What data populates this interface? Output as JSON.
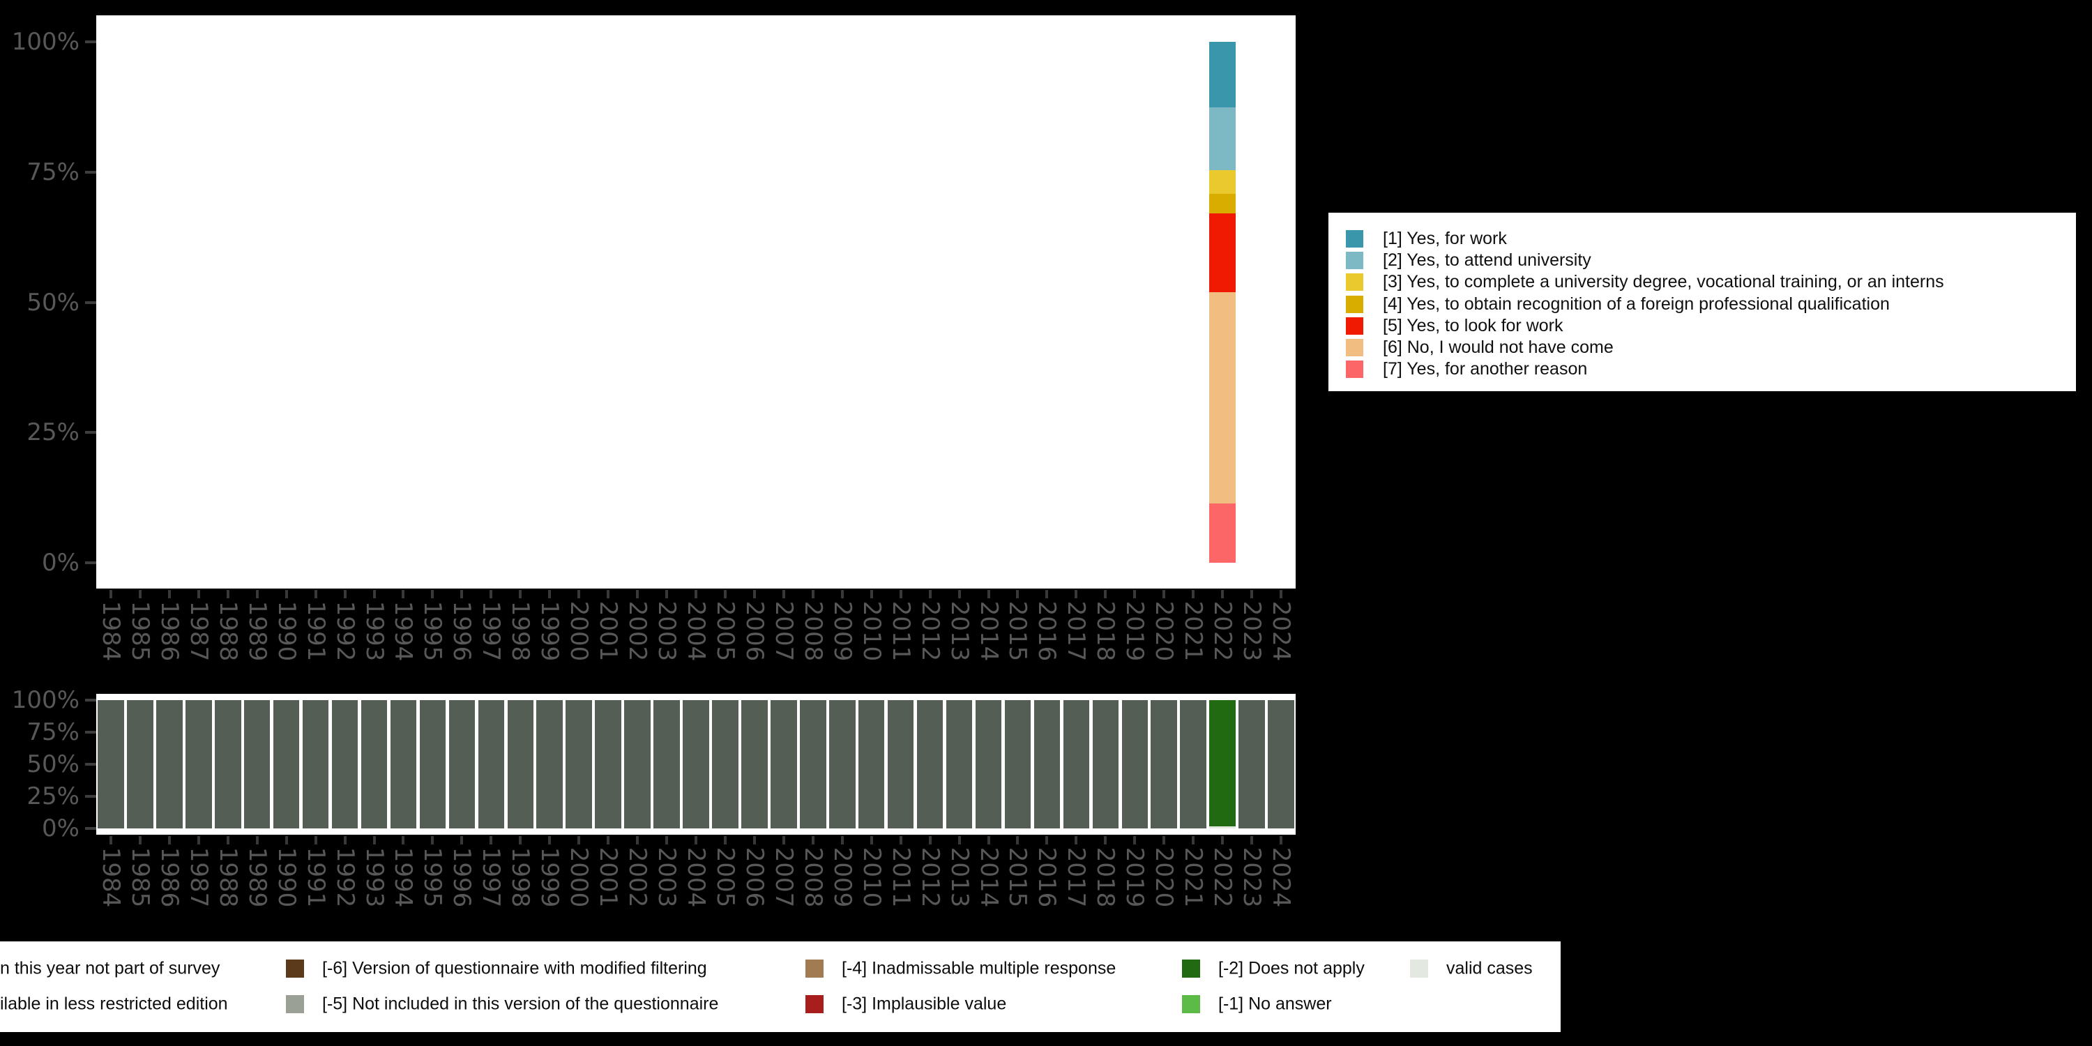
{
  "colors": {
    "background": "#000000",
    "panel": "#ffffff",
    "axis_text": "#585858",
    "axis_tick": "#3e3e3e",
    "legend_background": "#ffffff",
    "legend_text": "#0d0d0d"
  },
  "chart_data": [
    {
      "type": "bar",
      "stacked": true,
      "title": "",
      "xlabel": "",
      "ylabel": "",
      "ylim": [
        0,
        100
      ],
      "ytick_labels": [
        "100%",
        "75%",
        "50%",
        "25%",
        "0%"
      ],
      "grid": false,
      "legend_position": "right",
      "categories": [
        1984,
        1985,
        1986,
        1987,
        1988,
        1989,
        1990,
        1991,
        1992,
        1993,
        1994,
        1995,
        1996,
        1997,
        1998,
        1999,
        2000,
        2001,
        2002,
        2003,
        2004,
        2005,
        2006,
        2007,
        2008,
        2009,
        2010,
        2011,
        2012,
        2013,
        2014,
        2015,
        2016,
        2017,
        2018,
        2019,
        2020,
        2021,
        2022,
        2023,
        2024
      ],
      "series": [
        {
          "name": "[1] Yes, for work",
          "color": "#3a96ab",
          "values": [
            0,
            0,
            0,
            0,
            0,
            0,
            0,
            0,
            0,
            0,
            0,
            0,
            0,
            0,
            0,
            0,
            0,
            0,
            0,
            0,
            0,
            0,
            0,
            0,
            0,
            0,
            0,
            0,
            0,
            0,
            0,
            0,
            0,
            0,
            0,
            0,
            0,
            0,
            12.6,
            0,
            0
          ]
        },
        {
          "name": "[2] Yes, to attend university",
          "color": "#7cb9c5",
          "values": [
            0,
            0,
            0,
            0,
            0,
            0,
            0,
            0,
            0,
            0,
            0,
            0,
            0,
            0,
            0,
            0,
            0,
            0,
            0,
            0,
            0,
            0,
            0,
            0,
            0,
            0,
            0,
            0,
            0,
            0,
            0,
            0,
            0,
            0,
            0,
            0,
            0,
            0,
            12.0,
            0,
            0
          ]
        },
        {
          "name": "[3] Yes, to complete a university degree, vocational training, or an interns",
          "color": "#e9c92d",
          "values": [
            0,
            0,
            0,
            0,
            0,
            0,
            0,
            0,
            0,
            0,
            0,
            0,
            0,
            0,
            0,
            0,
            0,
            0,
            0,
            0,
            0,
            0,
            0,
            0,
            0,
            0,
            0,
            0,
            0,
            0,
            0,
            0,
            0,
            0,
            0,
            0,
            0,
            0,
            4.6,
            0,
            0
          ]
        },
        {
          "name": "[4] Yes, to obtain recognition of a foreign professional qualification",
          "color": "#d9ad00",
          "values": [
            0,
            0,
            0,
            0,
            0,
            0,
            0,
            0,
            0,
            0,
            0,
            0,
            0,
            0,
            0,
            0,
            0,
            0,
            0,
            0,
            0,
            0,
            0,
            0,
            0,
            0,
            0,
            0,
            0,
            0,
            0,
            0,
            0,
            0,
            0,
            0,
            0,
            0,
            3.7,
            0,
            0
          ]
        },
        {
          "name": "[5] Yes, to look for work",
          "color": "#f01a02",
          "values": [
            0,
            0,
            0,
            0,
            0,
            0,
            0,
            0,
            0,
            0,
            0,
            0,
            0,
            0,
            0,
            0,
            0,
            0,
            0,
            0,
            0,
            0,
            0,
            0,
            0,
            0,
            0,
            0,
            0,
            0,
            0,
            0,
            0,
            0,
            0,
            0,
            0,
            0,
            15.2,
            0,
            0
          ]
        },
        {
          "name": "[6] No, I would not have come",
          "color": "#f1bd80",
          "values": [
            0,
            0,
            0,
            0,
            0,
            0,
            0,
            0,
            0,
            0,
            0,
            0,
            0,
            0,
            0,
            0,
            0,
            0,
            0,
            0,
            0,
            0,
            0,
            0,
            0,
            0,
            0,
            0,
            0,
            0,
            0,
            0,
            0,
            0,
            0,
            0,
            0,
            0,
            40.5,
            0,
            0
          ]
        },
        {
          "name": "[7] Yes, for another reason",
          "color": "#fc6666",
          "values": [
            0,
            0,
            0,
            0,
            0,
            0,
            0,
            0,
            0,
            0,
            0,
            0,
            0,
            0,
            0,
            0,
            0,
            0,
            0,
            0,
            0,
            0,
            0,
            0,
            0,
            0,
            0,
            0,
            0,
            0,
            0,
            0,
            0,
            0,
            0,
            0,
            0,
            0,
            11.4,
            0,
            0
          ]
        }
      ]
    },
    {
      "type": "bar",
      "stacked": true,
      "title": "",
      "xlabel": "",
      "ylabel": "",
      "ylim": [
        0,
        100
      ],
      "ytick_labels": [
        "100%",
        "75%",
        "50%",
        "25%",
        "0%"
      ],
      "grid": false,
      "legend_position": "bottom",
      "categories": [
        1984,
        1985,
        1986,
        1987,
        1988,
        1989,
        1990,
        1991,
        1992,
        1993,
        1994,
        1995,
        1996,
        1997,
        1998,
        1999,
        2000,
        2001,
        2002,
        2003,
        2004,
        2005,
        2006,
        2007,
        2008,
        2009,
        2010,
        2011,
        2012,
        2013,
        2014,
        2015,
        2016,
        2017,
        2018,
        2019,
        2020,
        2021,
        2022,
        2023,
        2024
      ],
      "series": [
        {
          "name": "n this year not part of survey",
          "color": "#555e55",
          "values": [
            100,
            100,
            100,
            100,
            100,
            100,
            100,
            100,
            100,
            100,
            100,
            100,
            100,
            100,
            100,
            100,
            100,
            100,
            100,
            100,
            100,
            100,
            100,
            100,
            100,
            100,
            100,
            100,
            100,
            100,
            100,
            100,
            100,
            100,
            100,
            100,
            100,
            100,
            0,
            100,
            100
          ]
        },
        {
          "name": "[-2] Does not apply",
          "color": "#216a12",
          "values": [
            0,
            0,
            0,
            0,
            0,
            0,
            0,
            0,
            0,
            0,
            0,
            0,
            0,
            0,
            0,
            0,
            0,
            0,
            0,
            0,
            0,
            0,
            0,
            0,
            0,
            0,
            0,
            0,
            0,
            0,
            0,
            0,
            0,
            0,
            0,
            0,
            0,
            0,
            98.2,
            0,
            0
          ]
        },
        {
          "name": "valid cases",
          "color": "#e3e8e0",
          "values": [
            0,
            0,
            0,
            0,
            0,
            0,
            0,
            0,
            0,
            0,
            0,
            0,
            0,
            0,
            0,
            0,
            0,
            0,
            0,
            0,
            0,
            0,
            0,
            0,
            0,
            0,
            0,
            0,
            0,
            0,
            0,
            0,
            0,
            0,
            0,
            0,
            0,
            0,
            1.8,
            0,
            0
          ]
        }
      ]
    }
  ],
  "legend_values": {
    "items": [
      {
        "label": "[1] Yes, for work",
        "color": "#3a96ab"
      },
      {
        "label": "[2] Yes, to attend university",
        "color": "#7cb9c5"
      },
      {
        "label": "[3] Yes, to complete a university degree, vocational training, or an interns",
        "color": "#e9c92d"
      },
      {
        "label": "[4] Yes, to obtain recognition of a foreign professional qualification",
        "color": "#d9ad00"
      },
      {
        "label": "[5] Yes, to look for work",
        "color": "#f01a02"
      },
      {
        "label": "[6] No, I would not have come",
        "color": "#f1bd80"
      },
      {
        "label": "[7] Yes, for another reason",
        "color": "#fc6666"
      }
    ]
  },
  "legend_missing": {
    "columns": [
      {
        "items": [
          {
            "label": "n this year not part of survey",
            "color": null
          },
          {
            "label": "ilable in less restricted edition",
            "color": null
          }
        ]
      },
      {
        "items": [
          {
            "label": "[-6] Version of questionnaire with modified filtering",
            "color": "#5b3a1c"
          },
          {
            "label": "[-5] Not included in this version of the questionnaire",
            "color": "#9aa096"
          }
        ]
      },
      {
        "items": [
          {
            "label": "[-4] Inadmissable multiple response",
            "color": "#a17b52"
          },
          {
            "label": "[-3] Implausible value",
            "color": "#a81e1d"
          }
        ]
      },
      {
        "items": [
          {
            "label": "[-2] Does not apply",
            "color": "#216a12"
          },
          {
            "label": "[-1] No answer",
            "color": "#5bbb46"
          }
        ]
      },
      {
        "items": [
          {
            "label": "valid cases",
            "color": "#e3e8e0"
          }
        ]
      }
    ]
  }
}
